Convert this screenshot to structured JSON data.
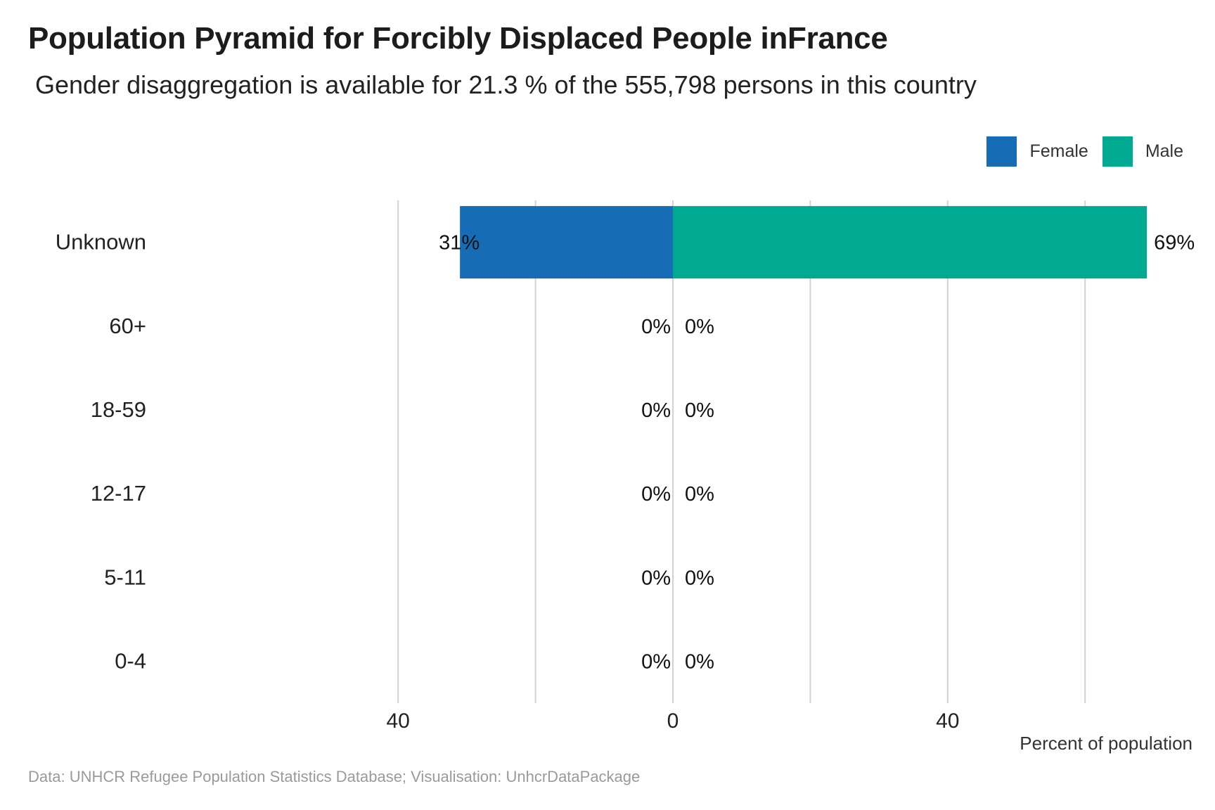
{
  "title": "Population Pyramid for Forcibly Displaced People inFrance",
  "subtitle": "Gender disaggregation is available for 21.3 % of the 555,798 persons in this country",
  "caption": "Data: UNHCR Refugee Population Statistics Database; Visualisation: UnhcrDataPackage",
  "colors": {
    "female": "#166cb5",
    "male": "#00aa91",
    "grid": "#d2d2d2"
  },
  "chart_data": {
    "type": "bar",
    "orientation": "horizontal-diverging",
    "categories": [
      "Unknown",
      "60+",
      "18-59",
      "12-17",
      "5-11",
      "0-4"
    ],
    "series": [
      {
        "name": "Female",
        "values": [
          31,
          0,
          0,
          0,
          0,
          0
        ],
        "labels": [
          "31%",
          "0%",
          "0%",
          "0%",
          "0%",
          "0%"
        ]
      },
      {
        "name": "Male",
        "values": [
          69,
          0,
          0,
          0,
          0,
          0
        ],
        "labels": [
          "69%",
          "0%",
          "0%",
          "0%",
          "0%",
          "0%"
        ]
      }
    ],
    "xlim": [
      -60,
      60
    ],
    "xticks": [
      -40,
      0,
      40
    ],
    "xtick_labels": [
      "40",
      "0",
      "40"
    ],
    "xlabel": "Percent of population",
    "grid": true,
    "legend": "top-right"
  }
}
